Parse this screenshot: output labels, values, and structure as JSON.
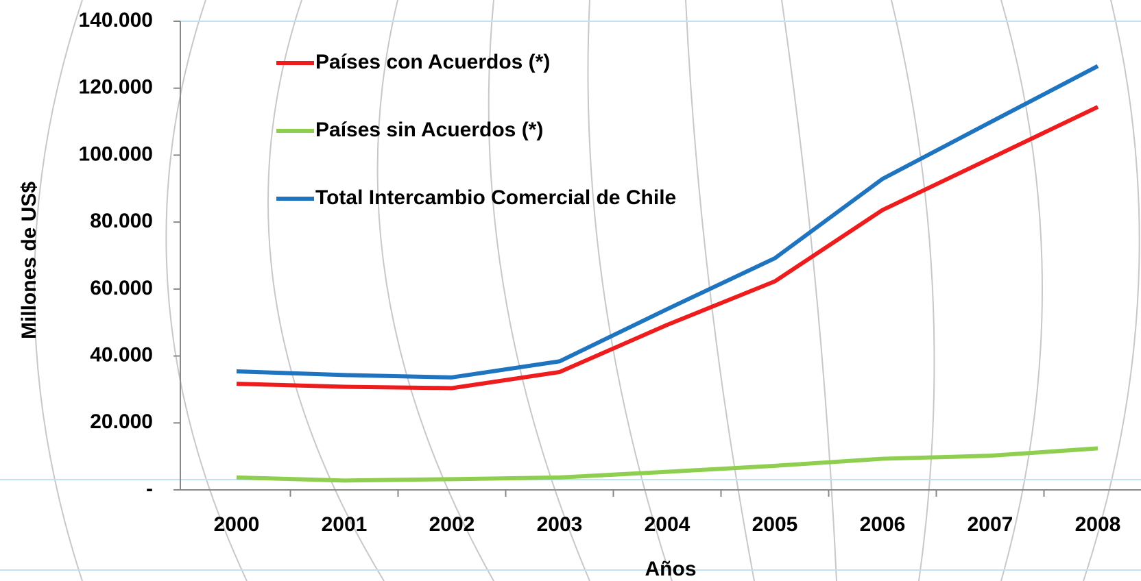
{
  "chart_data": {
    "type": "line",
    "x_label": "Años",
    "y_label": "Millones de US$",
    "categories": [
      "2000",
      "2001",
      "2002",
      "2003",
      "2004",
      "2005",
      "2006",
      "2007",
      "2008"
    ],
    "series": [
      {
        "name": "Países con Acuerdos (*)",
        "color": "#ee1c1c",
        "values": [
          31700,
          30800,
          30400,
          35200,
          49300,
          62300,
          83600,
          99000,
          114400
        ]
      },
      {
        "name": "Países sin Acuerdos (*)",
        "color": "#8fcf4f",
        "values": [
          3700,
          2800,
          3200,
          3700,
          5400,
          7200,
          9300,
          10200,
          12400
        ]
      },
      {
        "name": "Total Intercambio Comercial de Chile",
        "color": "#1f74c0",
        "values": [
          35400,
          34300,
          33600,
          38400,
          54000,
          69200,
          92900,
          109800,
          126600
        ]
      }
    ],
    "ylim": [
      0,
      140000
    ],
    "yticks": [
      {
        "value": 0,
        "label": "-"
      },
      {
        "value": 20000,
        "label": "20.000"
      },
      {
        "value": 40000,
        "label": "40.000"
      },
      {
        "value": 60000,
        "label": "60.000"
      },
      {
        "value": 80000,
        "label": "80.000"
      },
      {
        "value": 100000,
        "label": "100.000"
      },
      {
        "value": 120000,
        "label": "120.000"
      },
      {
        "value": 140000,
        "label": "140.000"
      }
    ],
    "legend": "top-left"
  }
}
